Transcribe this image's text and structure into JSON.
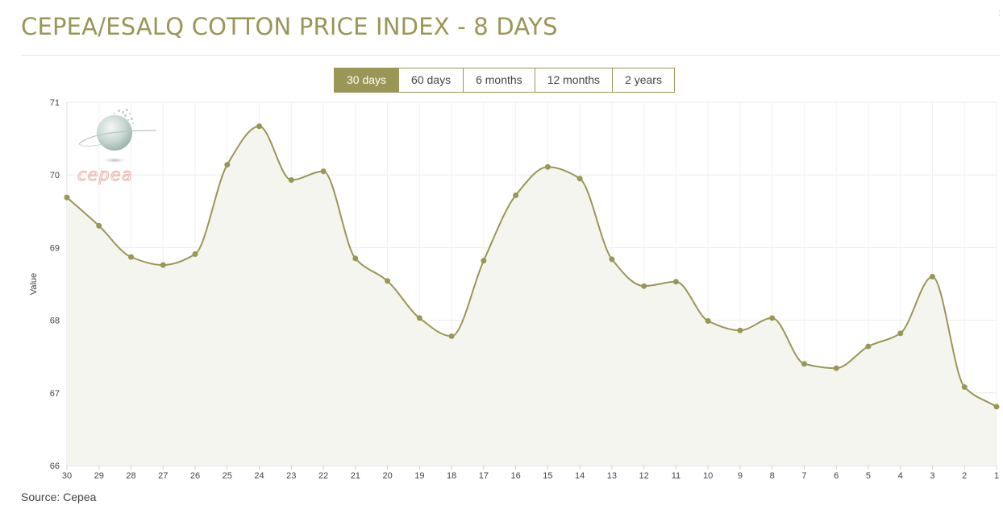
{
  "header": {
    "title": "CEPEA/ESALQ COTTON PRICE INDEX - 8 DAYS"
  },
  "range_selector": {
    "options": [
      "30 days",
      "60 days",
      "6 months",
      "12 months",
      "2 years"
    ],
    "selected": "30 days"
  },
  "logo": {
    "icon": "cepea-globe-logo",
    "text": "cepea"
  },
  "footer": {
    "source": "Source: Cepea"
  },
  "colors": {
    "accent": "#9a9656",
    "area_fill": "#f5f5f0",
    "grid": "#ebebeb"
  },
  "chart_data": {
    "type": "area",
    "ylabel": "Value",
    "xlabel": "",
    "ylim": [
      66,
      71
    ],
    "yticks": [
      66,
      67,
      68,
      69,
      70,
      71
    ],
    "grid": true,
    "categories": [
      "30",
      "29",
      "28",
      "27",
      "26",
      "25",
      "24",
      "23",
      "22",
      "21",
      "20",
      "19",
      "18",
      "17",
      "16",
      "15",
      "14",
      "13",
      "12",
      "11",
      "10",
      "9",
      "8",
      "7",
      "6",
      "5",
      "4",
      "3",
      "2",
      "1"
    ],
    "series": [
      {
        "values": [
          69.69,
          69.3,
          68.87,
          68.76,
          68.91,
          70.14,
          70.67,
          69.93,
          70.05,
          68.85,
          68.54,
          68.03,
          67.78,
          68.82,
          69.72,
          70.11,
          69.95,
          68.84,
          68.47,
          68.53,
          67.99,
          67.86,
          68.03,
          67.4,
          67.34,
          67.64,
          67.82,
          68.6,
          67.08,
          66.81
        ]
      }
    ]
  }
}
